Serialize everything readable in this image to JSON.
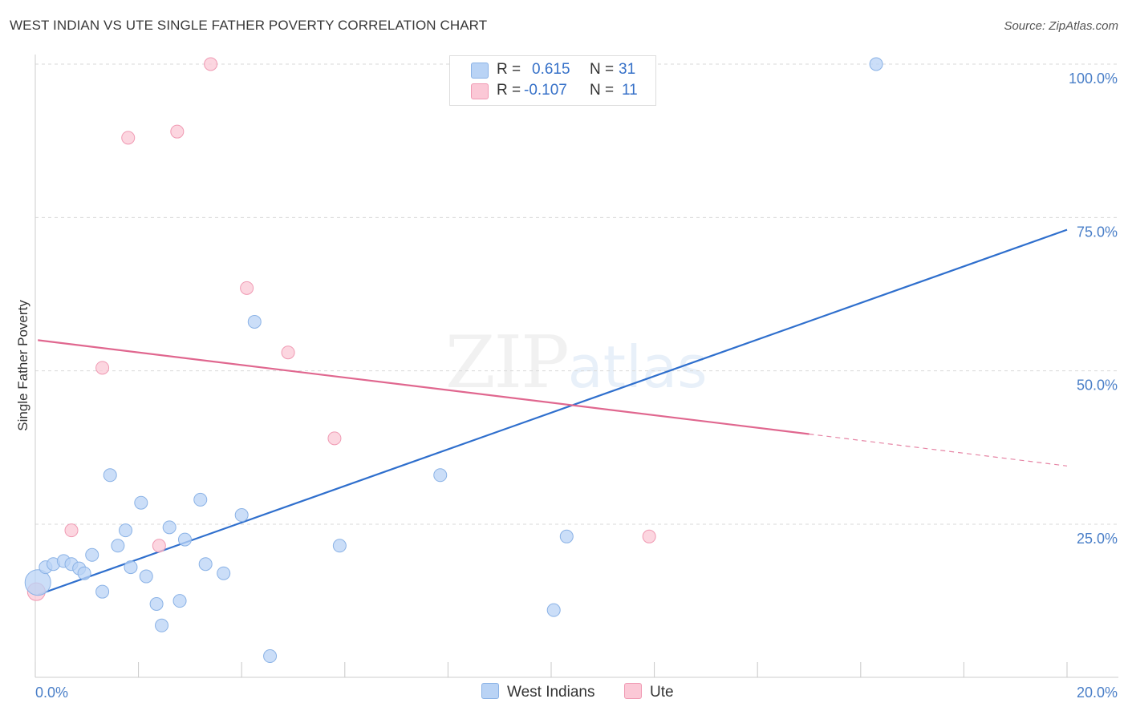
{
  "header": {
    "title": "WEST INDIAN VS UTE SINGLE FATHER POVERTY CORRELATION CHART",
    "source": "Source: ZipAtlas.com"
  },
  "legend": {
    "rows": [
      {
        "r_label": "R =",
        "r_value": "0.615",
        "n_label": "N =",
        "n_value": "31"
      },
      {
        "r_label": "R =",
        "r_value": "-0.107",
        "n_label": "N =",
        "n_value": "11"
      }
    ]
  },
  "bottom_legend": {
    "west_indians": "West Indians",
    "ute": "Ute"
  },
  "colors": {
    "west_indians_fill": "#b9d3f5",
    "west_indians_stroke": "#8ab2e6",
    "west_indians_line": "#2f6fcd",
    "ute_fill": "#fbc8d6",
    "ute_stroke": "#f09ab3",
    "ute_line": "#e0678f",
    "tick_text": "#4a7fc8"
  },
  "watermark": {
    "zip": "ZIP",
    "atlas": "atlas"
  },
  "chart_data": {
    "type": "scatter",
    "title": "WEST INDIAN VS UTE SINGLE FATHER POVERTY CORRELATION CHART",
    "xlabel": "",
    "ylabel": "Single Father Poverty",
    "xlim": [
      0,
      20
    ],
    "ylim": [
      0,
      102
    ],
    "x_tick_labels": [
      "0.0%",
      "20.0%"
    ],
    "y_ticks": [
      {
        "value": 25,
        "label": "25.0%"
      },
      {
        "value": 50,
        "label": "50.0%"
      },
      {
        "value": 75,
        "label": "75.0%"
      },
      {
        "value": 100,
        "label": "100.0%"
      }
    ],
    "series": [
      {
        "name": "West Indians",
        "points": [
          [
            0.05,
            15.5
          ],
          [
            0.2,
            18
          ],
          [
            0.35,
            18.5
          ],
          [
            0.55,
            19
          ],
          [
            0.7,
            18.5
          ],
          [
            0.85,
            17.8
          ],
          [
            0.95,
            17
          ],
          [
            1.1,
            20
          ],
          [
            1.3,
            14
          ],
          [
            1.45,
            33
          ],
          [
            1.6,
            21.5
          ],
          [
            1.75,
            24
          ],
          [
            1.85,
            18
          ],
          [
            2.05,
            28.5
          ],
          [
            2.15,
            16.5
          ],
          [
            2.35,
            12
          ],
          [
            2.45,
            8.5
          ],
          [
            2.6,
            24.5
          ],
          [
            2.8,
            12.5
          ],
          [
            2.9,
            22.5
          ],
          [
            3.2,
            29
          ],
          [
            3.3,
            18.5
          ],
          [
            3.65,
            17
          ],
          [
            4.0,
            26.5
          ],
          [
            4.25,
            58
          ],
          [
            4.55,
            3.5
          ],
          [
            5.9,
            21.5
          ],
          [
            7.85,
            33
          ],
          [
            10.05,
            11
          ],
          [
            10.3,
            23
          ],
          [
            16.3,
            100
          ]
        ],
        "trend": {
          "x0": 0.05,
          "y0": 13.5,
          "x1": 20.0,
          "y1": 73.0
        }
      },
      {
        "name": "Ute",
        "points": [
          [
            0.02,
            14
          ],
          [
            0.7,
            24
          ],
          [
            1.3,
            50.5
          ],
          [
            1.8,
            88
          ],
          [
            2.4,
            21.5
          ],
          [
            2.75,
            89
          ],
          [
            3.4,
            100
          ],
          [
            4.1,
            63.5
          ],
          [
            4.9,
            53
          ],
          [
            5.8,
            39
          ],
          [
            11.9,
            23
          ]
        ],
        "trend": {
          "x0": 0.05,
          "y0": 55.0,
          "x1": 15.0,
          "y1": 39.7
        },
        "trend_dashed": {
          "x0": 15.0,
          "y0": 39.7,
          "x1": 20.0,
          "y1": 34.5
        }
      }
    ],
    "legend_position": "top-center",
    "grid": true
  }
}
